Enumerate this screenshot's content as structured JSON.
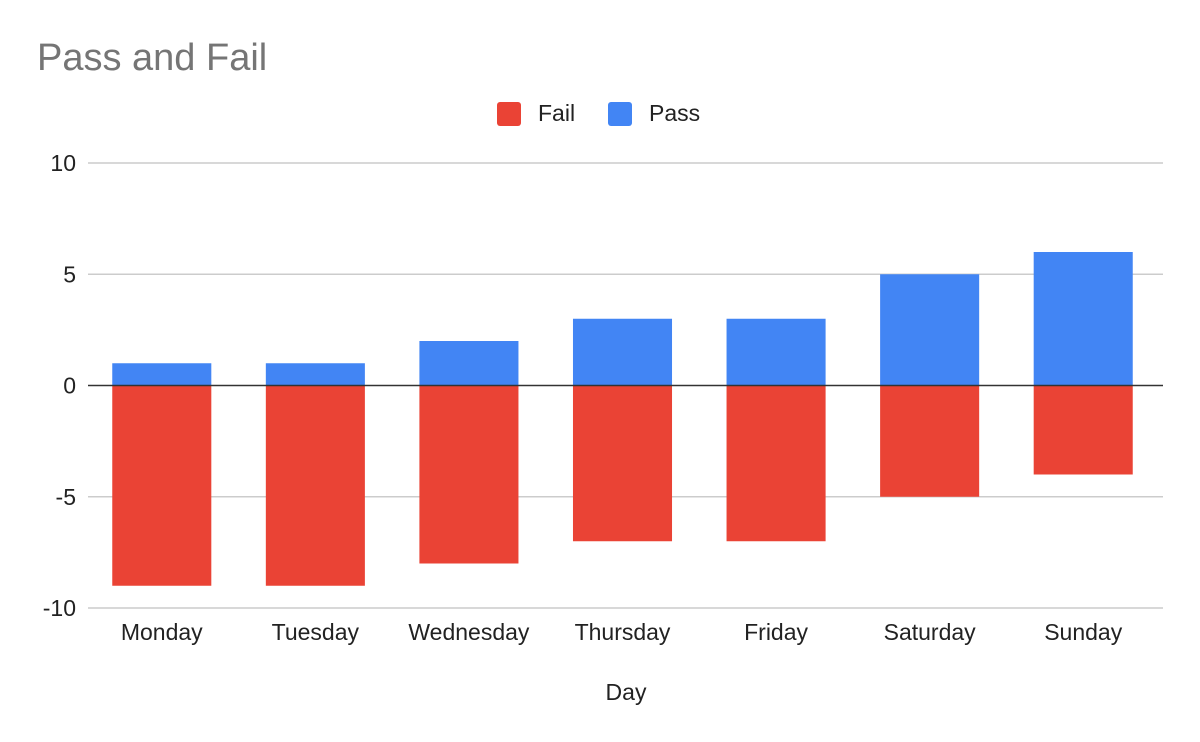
{
  "chart_data": {
    "type": "bar",
    "stacked": true,
    "title": "Pass and Fail",
    "xlabel": "Day",
    "ylabel": "",
    "categories": [
      "Monday",
      "Tuesday",
      "Wednesday",
      "Thursday",
      "Friday",
      "Saturday",
      "Sunday"
    ],
    "series": [
      {
        "name": "Fail",
        "color": "#ea4335",
        "values": [
          -9,
          -9,
          -8,
          -7,
          -7,
          -5,
          -4
        ]
      },
      {
        "name": "Pass",
        "color": "#4285f4",
        "values": [
          1,
          1,
          2,
          3,
          3,
          5,
          6
        ]
      }
    ],
    "ylim": [
      -10,
      10
    ],
    "yticks": [
      -10,
      -5,
      0,
      5,
      10
    ],
    "ytick_labels": [
      "-10",
      "-5",
      "0",
      "5",
      "10"
    ],
    "grid": true,
    "legend_position": "top"
  }
}
